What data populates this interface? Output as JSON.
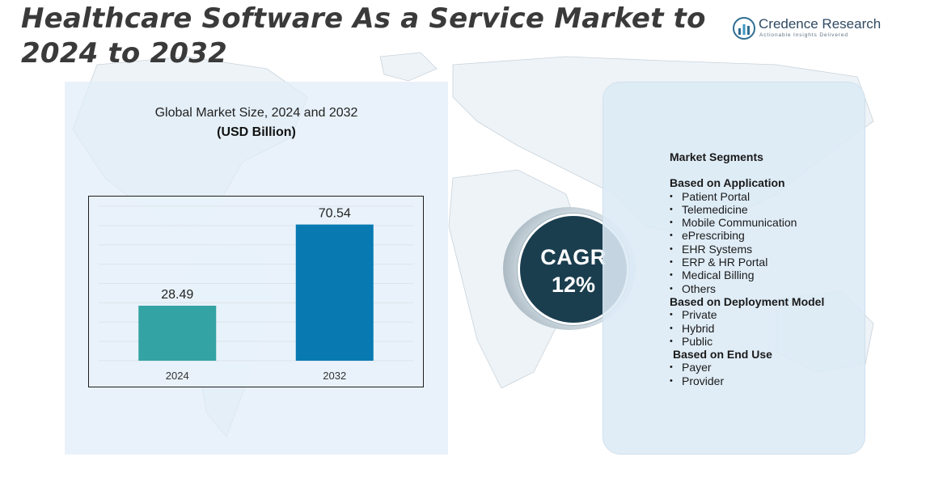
{
  "title": "Healthcare Software As a Service Market to 2024 to 2032",
  "logo": {
    "name": "Credence Research",
    "tagline": "Actionable Insights Delivered"
  },
  "chart_data": {
    "type": "bar",
    "title": "Global Market Size,  2024 and 2032",
    "subtitle": "(USD Billion)",
    "categories": [
      "2024",
      "2032"
    ],
    "values": [
      28.49,
      70.54
    ],
    "colors": [
      "#34a3a3",
      "#087ab1"
    ],
    "ylim": [
      0,
      80
    ],
    "grid": true,
    "legend": "none"
  },
  "cagr": {
    "label": "CAGR",
    "value": "12%"
  },
  "segments": {
    "title": "Market Segments",
    "groups": [
      {
        "name": "Based on Application",
        "items": [
          "Patient Portal",
          "Telemedicine",
          "Mobile Communication",
          "ePrescribing",
          "EHR Systems",
          "ERP & HR Portal",
          "Medical Billing",
          "Others"
        ]
      },
      {
        "name": "Based on Deployment Model",
        "items": [
          "Private",
          "Hybrid",
          "Public"
        ]
      },
      {
        "name": "Based on  End Use",
        "items": [
          "Payer",
          "Provider"
        ]
      }
    ]
  },
  "colors": {
    "title": "#3a3a3a",
    "panel": "#e0edf8",
    "cagr_circle": "#1b3e4f"
  }
}
